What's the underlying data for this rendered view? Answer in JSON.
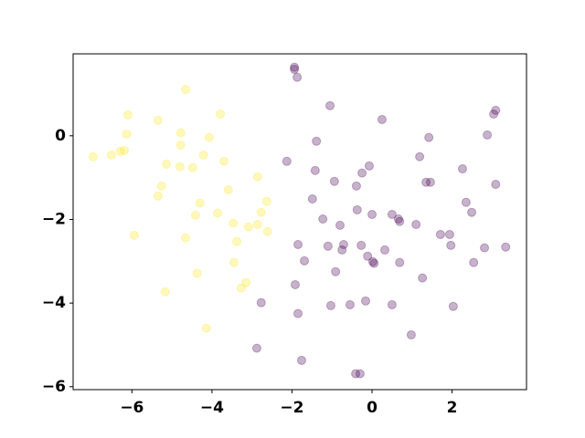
{
  "chart_data": {
    "type": "scatter",
    "xlim": [
      -7.47,
      3.86
    ],
    "ylim": [
      -6.07,
      1.96
    ],
    "xticks": [
      {
        "value": -6,
        "label": "−6"
      },
      {
        "value": -4,
        "label": "−4"
      },
      {
        "value": -2,
        "label": "−2"
      },
      0,
      2
    ],
    "yticks": [
      {
        "value": -6,
        "label": "−6"
      },
      {
        "value": -4,
        "label": "−4"
      },
      {
        "value": -2,
        "label": "−2"
      },
      0
    ],
    "alpha": 0.3,
    "series": [
      {
        "color": "#fde725",
        "x": [
          -6.97,
          -6.51,
          -6.29,
          -6.19,
          -6.1,
          -6.13,
          -5.94,
          -5.35,
          -5.35,
          -5.26,
          -5.14,
          -5.17,
          -4.78,
          -4.78,
          -4.8,
          -4.66,
          -4.66,
          -4.48,
          -4.41,
          -4.37,
          -4.3,
          -4.21,
          -4.14,
          -4.07,
          -3.86,
          -3.79,
          -3.7,
          -3.59,
          -3.47,
          -3.45,
          -3.38,
          -3.27,
          -3.15,
          -3.09,
          -2.86,
          -2.86,
          -2.77,
          -2.63,
          -2.61
        ],
        "y": [
          -0.5,
          -0.46,
          -0.37,
          -0.35,
          0.5,
          0.04,
          -2.38,
          0.37,
          -1.44,
          -1.2,
          -0.68,
          -3.73,
          0.07,
          -0.22,
          -0.74,
          1.11,
          -2.44,
          -0.76,
          -1.9,
          -3.29,
          -1.61,
          -0.46,
          -4.6,
          -0.04,
          -1.85,
          0.52,
          -0.61,
          -1.29,
          -2.09,
          -3.03,
          -2.53,
          -3.64,
          -3.51,
          -2.18,
          -0.98,
          -2.12,
          -1.83,
          -1.57,
          -2.29
        ]
      },
      {
        "color": "#440154",
        "x": [
          -1.94,
          -1.94,
          -1.87,
          -2.13,
          -1.49,
          -1.39,
          -1.42,
          -1.23,
          -1.85,
          -1.69,
          -1.92,
          -1.85,
          -1.76,
          -1.05,
          -0.94,
          -1.1,
          -1.03,
          -0.91,
          -0.8,
          -0.75,
          -0.71,
          -0.55,
          -0.41,
          -0.39,
          -0.37,
          -0.3,
          -0.27,
          -0.25,
          -0.16,
          -0.11,
          -0.07,
          0.0,
          0.02,
          0.05,
          0.25,
          0.32,
          0.5,
          0.5,
          0.66,
          0.69,
          0.69,
          0.98,
          1.1,
          1.19,
          1.26,
          1.35,
          1.42,
          1.46,
          1.71,
          1.94,
          1.97,
          2.03,
          2.26,
          2.35,
          2.49,
          2.54,
          2.81,
          2.88,
          3.04,
          3.09,
          3.09,
          3.34,
          -2.77,
          -2.88
        ],
        "y": [
          1.64,
          1.59,
          1.4,
          -0.61,
          -1.51,
          -0.13,
          -0.83,
          -1.99,
          -2.6,
          -2.99,
          -3.56,
          -4.25,
          -5.37,
          0.72,
          -1.09,
          -2.64,
          -4.06,
          -3.25,
          -2.14,
          -2.73,
          -2.6,
          -4.04,
          -5.69,
          -1.2,
          -1.77,
          -5.69,
          -2.62,
          -0.89,
          -3.95,
          -2.88,
          -0.72,
          -1.88,
          -3.01,
          -3.05,
          0.39,
          -2.73,
          -1.88,
          -4.04,
          -1.99,
          -3.03,
          -2.05,
          -4.76,
          -2.12,
          -0.5,
          -3.4,
          -1.11,
          -0.04,
          -1.11,
          -2.36,
          -2.36,
          -2.62,
          -4.08,
          -0.79,
          -1.59,
          -1.83,
          -3.03,
          -2.68,
          0.02,
          0.52,
          0.61,
          -1.16,
          -2.66,
          -3.99,
          -5.08
        ]
      }
    ]
  }
}
